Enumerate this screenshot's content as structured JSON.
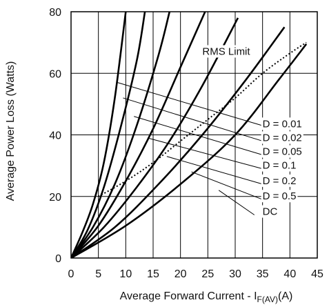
{
  "chart_data": {
    "type": "line",
    "title": "",
    "xlabel_main": "Average Forward Current - I",
    "xlabel_sub": "F(AV)",
    "xlabel_unit": "(A)",
    "ylabel": "Average Power Loss (Watts)",
    "xlim": [
      0,
      45
    ],
    "ylim": [
      0,
      80
    ],
    "x_ticks": [
      "0",
      "5",
      "10",
      "15",
      "20",
      "25",
      "30",
      "35",
      "40",
      "45"
    ],
    "y_ticks": [
      "0",
      "20",
      "40",
      "60",
      "80"
    ],
    "grid": true,
    "series": [
      {
        "name": "D = 0.01",
        "points": [
          [
            0,
            0
          ],
          [
            2,
            8
          ],
          [
            4,
            17.5
          ],
          [
            6,
            31
          ],
          [
            8,
            52
          ],
          [
            10,
            80
          ]
        ]
      },
      {
        "name": "D = 0.02",
        "points": [
          [
            0,
            0
          ],
          [
            3,
            9
          ],
          [
            6,
            23
          ],
          [
            9,
            42
          ],
          [
            12,
            64
          ],
          [
            13.5,
            80
          ]
        ]
      },
      {
        "name": "D = 0.05",
        "points": [
          [
            0,
            0
          ],
          [
            4,
            10
          ],
          [
            8,
            24
          ],
          [
            12,
            43
          ],
          [
            16,
            66
          ],
          [
            18,
            80
          ]
        ]
      },
      {
        "name": "D = 0.1",
        "points": [
          [
            0,
            0
          ],
          [
            5,
            10.5
          ],
          [
            10,
            25
          ],
          [
            15,
            42
          ],
          [
            20,
            62
          ],
          [
            24.5,
            80
          ]
        ]
      },
      {
        "name": "D = 0.2",
        "points": [
          [
            0,
            0
          ],
          [
            6,
            10
          ],
          [
            12,
            23
          ],
          [
            18,
            38
          ],
          [
            24,
            56
          ],
          [
            30.5,
            78
          ]
        ]
      },
      {
        "name": "D = 0.5",
        "points": [
          [
            0,
            0
          ],
          [
            8,
            10
          ],
          [
            16,
            24
          ],
          [
            24,
            40
          ],
          [
            32,
            58
          ],
          [
            39,
            75
          ]
        ]
      },
      {
        "name": "DC",
        "points": [
          [
            0,
            0
          ],
          [
            10,
            10.5
          ],
          [
            20,
            24
          ],
          [
            30,
            40
          ],
          [
            38,
            58
          ],
          [
            43,
            69.5
          ]
        ]
      },
      {
        "name": "RMS Limit",
        "style": "dotted",
        "points": [
          [
            5,
            20
          ],
          [
            10,
            25
          ],
          [
            15,
            31
          ],
          [
            20,
            38
          ],
          [
            25,
            45
          ],
          [
            30,
            52
          ],
          [
            35,
            60
          ],
          [
            40,
            66.5
          ],
          [
            43,
            70
          ]
        ]
      }
    ],
    "annotations": [
      {
        "text": "RMS Limit",
        "x": 24,
        "y": 66
      },
      {
        "text": "D = 0.01",
        "x": 35,
        "y": 42.5
      },
      {
        "text": "D = 0.02",
        "x": 35,
        "y": 38
      },
      {
        "text": "D = 0.05",
        "x": 35,
        "y": 33.5
      },
      {
        "text": "D = 0.1",
        "x": 35,
        "y": 29
      },
      {
        "text": "D = 0.2",
        "x": 35,
        "y": 24
      },
      {
        "text": "D = 0.5",
        "x": 35,
        "y": 19
      },
      {
        "text": "DC",
        "x": 35,
        "y": 14
      }
    ],
    "leaders": [
      {
        "from": [
          8.5,
          57
        ],
        "to": [
          35,
          43
        ]
      },
      {
        "from": [
          9.5,
          52
        ],
        "to": [
          35,
          38
        ]
      },
      {
        "from": [
          11.5,
          46
        ],
        "to": [
          35,
          33.5
        ]
      },
      {
        "from": [
          14,
          39
        ],
        "to": [
          35,
          29
        ]
      },
      {
        "from": [
          17.5,
          33
        ],
        "to": [
          35,
          24
        ]
      },
      {
        "from": [
          22,
          28
        ],
        "to": [
          35,
          19
        ]
      },
      {
        "from": [
          27,
          22
        ],
        "to": [
          33.5,
          14
        ]
      }
    ]
  }
}
